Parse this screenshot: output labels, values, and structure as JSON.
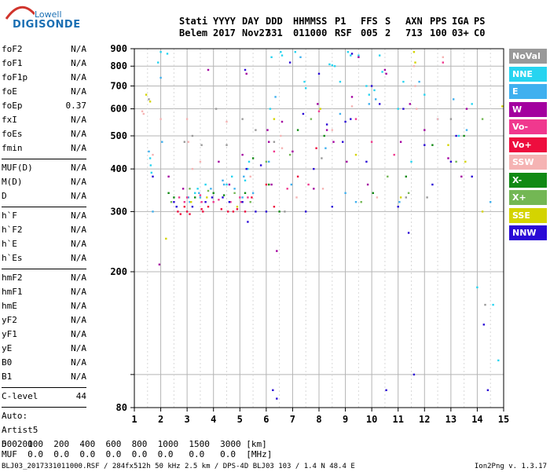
{
  "logo": {
    "line1": "Lowell",
    "line2": "DIGISONDE"
  },
  "header": {
    "row1": [
      "Stati",
      "YYYY",
      "DAY",
      "DDD",
      "HHMMSS",
      "P1",
      "FFS",
      "S",
      "AXN",
      "PPS",
      "IGA",
      "PS"
    ],
    "row2": [
      "Belem",
      "2017",
      "Nov27",
      "331",
      "011000",
      "RSF",
      "005",
      "2",
      "713",
      "100",
      "03+",
      "C0"
    ]
  },
  "params": {
    "group1": [
      {
        "k": "foF2",
        "v": "N/A"
      },
      {
        "k": "foF1",
        "v": "N/A"
      },
      {
        "k": "foF1p",
        "v": "N/A"
      },
      {
        "k": "foE",
        "v": "N/A"
      },
      {
        "k": "foEp",
        "v": "0.37"
      },
      {
        "k": "fxI",
        "v": "N/A"
      },
      {
        "k": "foEs",
        "v": "N/A"
      },
      {
        "k": "fmin",
        "v": "N/A"
      }
    ],
    "group2": [
      {
        "k": "MUF(D)",
        "v": "N/A"
      },
      {
        "k": "M(D)",
        "v": "N/A"
      },
      {
        "k": "D",
        "v": "N/A"
      }
    ],
    "group3": [
      {
        "k": "h`F",
        "v": "N/A"
      },
      {
        "k": "h`F2",
        "v": "N/A"
      },
      {
        "k": "h`E",
        "v": "N/A"
      },
      {
        "k": "h`Es",
        "v": "N/A"
      }
    ],
    "group4": [
      {
        "k": "hmF2",
        "v": "N/A"
      },
      {
        "k": "hmF1",
        "v": "N/A"
      },
      {
        "k": "hmE",
        "v": "N/A"
      },
      {
        "k": "yF2",
        "v": "N/A"
      },
      {
        "k": "yF1",
        "v": "N/A"
      },
      {
        "k": "yE",
        "v": "N/A"
      },
      {
        "k": "B0",
        "v": "N/A"
      },
      {
        "k": "B1",
        "v": "N/A"
      }
    ],
    "clevel": {
      "k": "C-level",
      "v": "44"
    },
    "auto": [
      "Auto:",
      "Artist5",
      "500200"
    ]
  },
  "legend": [
    {
      "label": "NoVal",
      "color": "#999999"
    },
    {
      "label": "NNE",
      "color": "#27d4f0"
    },
    {
      "label": "E",
      "color": "#3fb0ef"
    },
    {
      "label": "W",
      "color": "#a3009f"
    },
    {
      "label": "Vo-",
      "color": "#f0388e"
    },
    {
      "label": "Vo+",
      "color": "#ee0d3e"
    },
    {
      "label": "SSW",
      "color": "#f5b3b3"
    },
    {
      "label": "X-",
      "color": "#118a14"
    },
    {
      "label": "X+",
      "color": "#73b754"
    },
    {
      "label": "SSE",
      "color": "#d4d400"
    },
    {
      "label": "NNW",
      "color": "#2a0ad6"
    }
  ],
  "footer": {
    "line1": "D    100  200  400  600  800  1000  1500  3000 [km]",
    "line2": "MUF  0.0  0.0  0.0  0.0  0.0  0.0   0.0   0.0  [MHz]",
    "line3": "BLJ03_2017331011000.RSF / 284fx512h 50 kHz 2.5 km / DPS-4D BLJ03 103 / 1.4 N 48.4 E",
    "version": "Ion2Png v. 1.3.17"
  },
  "chart_data": {
    "type": "scatter",
    "title": "",
    "xlabel": "",
    "ylabel": "",
    "xlim": [
      1,
      15
    ],
    "ylim": [
      80,
      900
    ],
    "xticks": [
      1,
      2,
      3,
      4,
      5,
      6,
      7,
      8,
      9,
      10,
      11,
      12,
      13,
      14,
      15
    ],
    "yticks": [
      80,
      100,
      200,
      300,
      400,
      500,
      600,
      700,
      800,
      900
    ],
    "ytick_labels": [
      "80",
      "",
      "200",
      "300",
      "400",
      "500",
      "600",
      "700",
      "800",
      "900"
    ],
    "yscale": "log",
    "grid": true,
    "series": [
      {
        "name": "NoVal",
        "points": [
          [
            1.55,
            640
          ],
          [
            2.9,
            480
          ],
          [
            3.2,
            500
          ],
          [
            3.55,
            470
          ],
          [
            4.1,
            600
          ],
          [
            4.5,
            470
          ],
          [
            5.1,
            560
          ],
          [
            5.6,
            520
          ],
          [
            6.3,
            480
          ],
          [
            6.7,
            300
          ],
          [
            8.1,
            430
          ],
          [
            11.3,
            330
          ],
          [
            12.1,
            330
          ],
          [
            13.0,
            560
          ],
          [
            14.3,
            160
          ]
        ]
      },
      {
        "name": "NNE",
        "points": [
          [
            1.6,
            430
          ],
          [
            1.62,
            410
          ],
          [
            1.65,
            390
          ],
          [
            1.9,
            820
          ],
          [
            2.0,
            880
          ],
          [
            2.25,
            870
          ],
          [
            3.3,
            340
          ],
          [
            3.4,
            350
          ],
          [
            3.7,
            360
          ],
          [
            4.5,
            360
          ],
          [
            4.7,
            380
          ],
          [
            5.2,
            370
          ],
          [
            5.3,
            400
          ],
          [
            5.35,
            420
          ],
          [
            6.15,
            600
          ],
          [
            6.2,
            850
          ],
          [
            6.55,
            880
          ],
          [
            6.6,
            860
          ],
          [
            7.1,
            880
          ],
          [
            7.45,
            720
          ],
          [
            7.5,
            690
          ],
          [
            8.4,
            810
          ],
          [
            8.5,
            805
          ],
          [
            8.6,
            800
          ],
          [
            8.8,
            720
          ],
          [
            9.1,
            880
          ],
          [
            9.2,
            860
          ],
          [
            9.5,
            860
          ],
          [
            9.8,
            700
          ],
          [
            9.9,
            660
          ],
          [
            10.1,
            680
          ],
          [
            10.3,
            860
          ],
          [
            10.4,
            770
          ],
          [
            11.0,
            600
          ],
          [
            11.2,
            720
          ],
          [
            11.5,
            420
          ],
          [
            12.0,
            660
          ],
          [
            13.3,
            500
          ],
          [
            13.8,
            620
          ],
          [
            14.0,
            180
          ],
          [
            14.6,
            160
          ],
          [
            14.8,
            110
          ]
        ]
      },
      {
        "name": "E",
        "points": [
          [
            1.55,
            450
          ],
          [
            1.7,
            300
          ],
          [
            2.0,
            740
          ],
          [
            2.05,
            480
          ],
          [
            3.05,
            330
          ],
          [
            3.1,
            320
          ],
          [
            3.45,
            340
          ],
          [
            3.5,
            330
          ],
          [
            3.9,
            350
          ],
          [
            4.35,
            370
          ],
          [
            4.4,
            360
          ],
          [
            4.8,
            350
          ],
          [
            5.1,
            330
          ],
          [
            5.15,
            380
          ],
          [
            5.5,
            340
          ],
          [
            6.1,
            420
          ],
          [
            6.35,
            650
          ],
          [
            6.95,
            360
          ],
          [
            7.3,
            850
          ],
          [
            8.25,
            460
          ],
          [
            8.8,
            580
          ],
          [
            9.0,
            340
          ],
          [
            9.4,
            320
          ],
          [
            9.9,
            620
          ],
          [
            10.15,
            640
          ],
          [
            11.05,
            320
          ],
          [
            11.8,
            720
          ],
          [
            12.5,
            560
          ],
          [
            13.1,
            640
          ],
          [
            13.6,
            520
          ],
          [
            14.5,
            320
          ]
        ]
      },
      {
        "name": "W",
        "points": [
          [
            1.95,
            210
          ],
          [
            2.3,
            380
          ],
          [
            2.85,
            350
          ],
          [
            3.8,
            780
          ],
          [
            4.2,
            420
          ],
          [
            4.6,
            360
          ],
          [
            5.1,
            440
          ],
          [
            5.25,
            760
          ],
          [
            6.05,
            520
          ],
          [
            6.1,
            480
          ],
          [
            6.2,
            360
          ],
          [
            6.4,
            230
          ],
          [
            6.6,
            550
          ],
          [
            7.0,
            450
          ],
          [
            7.8,
            350
          ],
          [
            7.95,
            620
          ],
          [
            8.3,
            520
          ],
          [
            8.55,
            480
          ],
          [
            9.05,
            420
          ],
          [
            9.25,
            650
          ],
          [
            9.5,
            850
          ],
          [
            9.85,
            360
          ],
          [
            10.5,
            780
          ],
          [
            10.55,
            760
          ],
          [
            11.1,
            480
          ],
          [
            11.45,
            620
          ],
          [
            12.0,
            520
          ],
          [
            12.9,
            430
          ],
          [
            13.4,
            380
          ],
          [
            13.6,
            600
          ]
        ]
      },
      {
        "name": "Vo-",
        "points": [
          [
            2.7,
            330
          ],
          [
            2.9,
            320
          ],
          [
            3.0,
            330
          ],
          [
            3.5,
            335
          ],
          [
            3.55,
            320
          ],
          [
            4.0,
            320
          ],
          [
            4.2,
            325
          ],
          [
            4.65,
            320
          ],
          [
            5.0,
            330
          ],
          [
            5.05,
            320
          ],
          [
            5.3,
            330
          ],
          [
            6.3,
            450
          ],
          [
            6.8,
            350
          ],
          [
            7.6,
            360
          ],
          [
            8.0,
            590
          ],
          [
            9.4,
            560
          ],
          [
            10.0,
            480
          ],
          [
            10.85,
            440
          ],
          [
            12.7,
            820
          ]
        ]
      },
      {
        "name": "Vo+",
        "points": [
          [
            2.65,
            300
          ],
          [
            2.75,
            295
          ],
          [
            2.9,
            310
          ],
          [
            3.0,
            300
          ],
          [
            3.1,
            295
          ],
          [
            3.55,
            305
          ],
          [
            3.6,
            300
          ],
          [
            3.8,
            310
          ],
          [
            4.3,
            305
          ],
          [
            4.55,
            300
          ],
          [
            4.75,
            300
          ],
          [
            4.9,
            305
          ],
          [
            5.2,
            300
          ],
          [
            5.45,
            330
          ],
          [
            6.0,
            360
          ],
          [
            6.3,
            310
          ],
          [
            7.2,
            380
          ],
          [
            7.9,
            460
          ]
        ]
      },
      {
        "name": "SSW",
        "points": [
          [
            1.3,
            590
          ],
          [
            1.35,
            580
          ],
          [
            1.7,
            440
          ],
          [
            2.0,
            560
          ],
          [
            3.0,
            560
          ],
          [
            3.05,
            480
          ],
          [
            3.2,
            400
          ],
          [
            3.5,
            420
          ],
          [
            4.5,
            550
          ],
          [
            5.4,
            380
          ],
          [
            6.55,
            500
          ],
          [
            6.6,
            460
          ],
          [
            7.15,
            330
          ],
          [
            8.15,
            350
          ],
          [
            8.5,
            520
          ],
          [
            9.25,
            610
          ],
          [
            10.2,
            330
          ],
          [
            11.6,
            800
          ],
          [
            11.65,
            700
          ],
          [
            11.7,
            600
          ],
          [
            12.5,
            560
          ],
          [
            12.7,
            850
          ]
        ]
      },
      {
        "name": "X-",
        "points": [
          [
            2.3,
            340
          ],
          [
            2.5,
            330
          ],
          [
            3.3,
            330
          ],
          [
            4.0,
            340
          ],
          [
            4.4,
            335
          ],
          [
            5.2,
            340
          ],
          [
            5.5,
            430
          ],
          [
            6.1,
            360
          ],
          [
            6.5,
            300
          ],
          [
            7.2,
            520
          ],
          [
            8.2,
            500
          ],
          [
            10.05,
            340
          ],
          [
            11.3,
            380
          ],
          [
            12.3,
            470
          ],
          [
            13.5,
            500
          ]
        ]
      },
      {
        "name": "X+",
        "points": [
          [
            2.4,
            320
          ],
          [
            3.1,
            350
          ],
          [
            3.8,
            345
          ],
          [
            4.8,
            340
          ],
          [
            5.4,
            320
          ],
          [
            6.0,
            420
          ],
          [
            6.9,
            440
          ],
          [
            7.7,
            560
          ],
          [
            9.6,
            320
          ],
          [
            10.6,
            380
          ],
          [
            11.4,
            340
          ],
          [
            13.2,
            420
          ],
          [
            14.2,
            560
          ]
        ]
      },
      {
        "name": "SSE",
        "points": [
          [
            1.45,
            660
          ],
          [
            1.6,
            630
          ],
          [
            2.2,
            250
          ],
          [
            3.15,
            320
          ],
          [
            3.75,
            330
          ],
          [
            4.9,
            310
          ],
          [
            6.3,
            560
          ],
          [
            8.05,
            600
          ],
          [
            9.4,
            440
          ],
          [
            11.1,
            330
          ],
          [
            11.6,
            880
          ],
          [
            11.65,
            820
          ],
          [
            12.9,
            470
          ],
          [
            13.55,
            420
          ],
          [
            14.2,
            300
          ],
          [
            14.95,
            610
          ]
        ]
      },
      {
        "name": "NNW",
        "points": [
          [
            1.7,
            380
          ],
          [
            2.5,
            320
          ],
          [
            2.6,
            310
          ],
          [
            3.2,
            310
          ],
          [
            3.7,
            320
          ],
          [
            3.95,
            330
          ],
          [
            4.35,
            330
          ],
          [
            4.6,
            320
          ],
          [
            5.1,
            320
          ],
          [
            5.2,
            780
          ],
          [
            5.25,
            400
          ],
          [
            5.3,
            280
          ],
          [
            5.6,
            300
          ],
          [
            5.8,
            410
          ],
          [
            6.0,
            300
          ],
          [
            6.25,
            90
          ],
          [
            6.4,
            85
          ],
          [
            6.9,
            820
          ],
          [
            7.4,
            580
          ],
          [
            7.5,
            300
          ],
          [
            7.8,
            400
          ],
          [
            8.0,
            760
          ],
          [
            8.3,
            540
          ],
          [
            8.5,
            310
          ],
          [
            8.9,
            480
          ],
          [
            9.0,
            550
          ],
          [
            9.2,
            560
          ],
          [
            9.25,
            870
          ],
          [
            9.8,
            420
          ],
          [
            10.0,
            700
          ],
          [
            10.3,
            620
          ],
          [
            10.55,
            90
          ],
          [
            11.0,
            310
          ],
          [
            11.2,
            600
          ],
          [
            11.4,
            260
          ],
          [
            11.6,
            100
          ],
          [
            12.0,
            470
          ],
          [
            12.3,
            360
          ],
          [
            13.0,
            420
          ],
          [
            13.2,
            500
          ],
          [
            13.8,
            380
          ],
          [
            14.25,
            140
          ],
          [
            14.4,
            90
          ]
        ]
      }
    ]
  }
}
